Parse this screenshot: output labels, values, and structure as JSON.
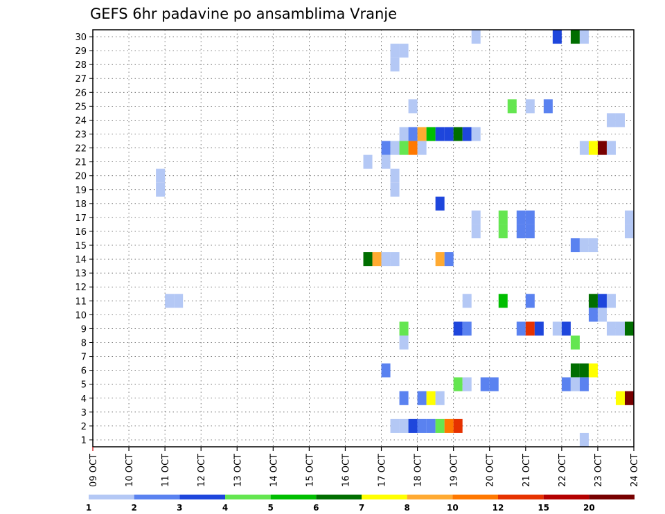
{
  "chart_data": {
    "type": "heatmap",
    "title": "GEFS 6hr padavine po ansamblima Vranje",
    "xlabel": "",
    "ylabel": "",
    "x_ticks": [
      "09 OCT",
      "10 OCT",
      "11 OCT",
      "12 OCT",
      "13 OCT",
      "14 OCT",
      "15 OCT",
      "16 OCT",
      "17 OCT",
      "18 OCT",
      "19 OCT",
      "20 OCT",
      "21 OCT",
      "22 OCT",
      "23 OCT",
      "24 OCT"
    ],
    "xlim": [
      0,
      60
    ],
    "x_step_hours": 6,
    "y_ticks": [
      "1",
      "2",
      "3",
      "4",
      "5",
      "6",
      "7",
      "8",
      "9",
      "10",
      "11",
      "12",
      "13",
      "14",
      "15",
      "16",
      "17",
      "18",
      "19",
      "20",
      "21",
      "22",
      "23",
      "24",
      "25",
      "26",
      "27",
      "28",
      "29",
      "30"
    ],
    "ylim": [
      0.5,
      30.5
    ],
    "grid": true,
    "legend": {
      "placement": "bottom",
      "labels": [
        "1",
        "2",
        "3",
        "4",
        "5",
        "6",
        "7",
        "8",
        "10",
        "12",
        "15",
        "20"
      ],
      "colors": [
        "#b4c8f5",
        "#5a82f0",
        "#1e46dc",
        "#64e650",
        "#00be00",
        "#006e00",
        "#ffff00",
        "#ffaa32",
        "#ff7800",
        "#e63200",
        "#b40000",
        "#780000"
      ]
    },
    "cells_note_units": "x = 6-hour step index from 09 OCT 00UTC, y = ensemble member, c = color class index",
    "cells": [
      {
        "x": 43,
        "y": 30,
        "c": 0
      },
      {
        "x": 52,
        "y": 30,
        "c": 2
      },
      {
        "x": 54,
        "y": 30,
        "c": 5
      },
      {
        "x": 55,
        "y": 30,
        "c": 0
      },
      {
        "x": 34,
        "y": 29,
        "c": 0
      },
      {
        "x": 35,
        "y": 29,
        "c": 0
      },
      {
        "x": 34,
        "y": 28,
        "c": 0
      },
      {
        "x": 36,
        "y": 25,
        "c": 0
      },
      {
        "x": 47,
        "y": 25,
        "c": 3
      },
      {
        "x": 49,
        "y": 25,
        "c": 0
      },
      {
        "x": 51,
        "y": 25,
        "c": 1
      },
      {
        "x": 58,
        "y": 24,
        "c": 0
      },
      {
        "x": 59,
        "y": 24,
        "c": 0
      },
      {
        "x": 35,
        "y": 23,
        "c": 0
      },
      {
        "x": 36,
        "y": 23,
        "c": 1
      },
      {
        "x": 37,
        "y": 23,
        "c": 7
      },
      {
        "x": 38,
        "y": 23,
        "c": 4
      },
      {
        "x": 39,
        "y": 23,
        "c": 2
      },
      {
        "x": 40,
        "y": 23,
        "c": 2
      },
      {
        "x": 41,
        "y": 23,
        "c": 5
      },
      {
        "x": 42,
        "y": 23,
        "c": 2
      },
      {
        "x": 43,
        "y": 23,
        "c": 0
      },
      {
        "x": 33,
        "y": 22,
        "c": 1
      },
      {
        "x": 34,
        "y": 22,
        "c": 0
      },
      {
        "x": 35,
        "y": 22,
        "c": 3
      },
      {
        "x": 36,
        "y": 22,
        "c": 8
      },
      {
        "x": 37,
        "y": 22,
        "c": 0
      },
      {
        "x": 55,
        "y": 22,
        "c": 0
      },
      {
        "x": 56,
        "y": 22,
        "c": 6
      },
      {
        "x": 57,
        "y": 22,
        "c": 11
      },
      {
        "x": 58,
        "y": 22,
        "c": 0
      },
      {
        "x": 31,
        "y": 21,
        "c": 0
      },
      {
        "x": 33,
        "y": 21,
        "c": 0
      },
      {
        "x": 8,
        "y": 20,
        "c": 0
      },
      {
        "x": 34,
        "y": 20,
        "c": 0
      },
      {
        "x": 8,
        "y": 19,
        "c": 0
      },
      {
        "x": 34,
        "y": 19,
        "c": 0
      },
      {
        "x": 39,
        "y": 18,
        "c": 2
      },
      {
        "x": 43,
        "y": 17,
        "c": 0
      },
      {
        "x": 46,
        "y": 17,
        "c": 3
      },
      {
        "x": 48,
        "y": 17,
        "c": 1
      },
      {
        "x": 49,
        "y": 17,
        "c": 1
      },
      {
        "x": 60,
        "y": 17,
        "c": 0
      },
      {
        "x": 43,
        "y": 16,
        "c": 0
      },
      {
        "x": 46,
        "y": 16,
        "c": 3
      },
      {
        "x": 48,
        "y": 16,
        "c": 1
      },
      {
        "x": 49,
        "y": 16,
        "c": 1
      },
      {
        "x": 60,
        "y": 16,
        "c": 0
      },
      {
        "x": 54,
        "y": 15,
        "c": 1
      },
      {
        "x": 55,
        "y": 15,
        "c": 0
      },
      {
        "x": 56,
        "y": 15,
        "c": 0
      },
      {
        "x": 31,
        "y": 14,
        "c": 5
      },
      {
        "x": 32,
        "y": 14,
        "c": 7
      },
      {
        "x": 33,
        "y": 14,
        "c": 0
      },
      {
        "x": 34,
        "y": 14,
        "c": 0
      },
      {
        "x": 39,
        "y": 14,
        "c": 7
      },
      {
        "x": 40,
        "y": 14,
        "c": 1
      },
      {
        "x": 9,
        "y": 11,
        "c": 0
      },
      {
        "x": 10,
        "y": 11,
        "c": 0
      },
      {
        "x": 42,
        "y": 11,
        "c": 0
      },
      {
        "x": 46,
        "y": 11,
        "c": 4
      },
      {
        "x": 49,
        "y": 11,
        "c": 1
      },
      {
        "x": 56,
        "y": 11,
        "c": 5
      },
      {
        "x": 57,
        "y": 11,
        "c": 2
      },
      {
        "x": 58,
        "y": 11,
        "c": 0
      },
      {
        "x": 56,
        "y": 10,
        "c": 1
      },
      {
        "x": 57,
        "y": 10,
        "c": 0
      },
      {
        "x": 35,
        "y": 9,
        "c": 3
      },
      {
        "x": 41,
        "y": 9,
        "c": 2
      },
      {
        "x": 42,
        "y": 9,
        "c": 1
      },
      {
        "x": 48,
        "y": 9,
        "c": 1
      },
      {
        "x": 49,
        "y": 9,
        "c": 9
      },
      {
        "x": 50,
        "y": 9,
        "c": 2
      },
      {
        "x": 52,
        "y": 9,
        "c": 0
      },
      {
        "x": 53,
        "y": 9,
        "c": 2
      },
      {
        "x": 58,
        "y": 9,
        "c": 0
      },
      {
        "x": 59,
        "y": 9,
        "c": 0
      },
      {
        "x": 60,
        "y": 9,
        "c": 5
      },
      {
        "x": 35,
        "y": 8,
        "c": 0
      },
      {
        "x": 54,
        "y": 8,
        "c": 3
      },
      {
        "x": 33,
        "y": 6,
        "c": 1
      },
      {
        "x": 54,
        "y": 6,
        "c": 5
      },
      {
        "x": 55,
        "y": 6,
        "c": 5
      },
      {
        "x": 56,
        "y": 6,
        "c": 6
      },
      {
        "x": 41,
        "y": 5,
        "c": 3
      },
      {
        "x": 42,
        "y": 5,
        "c": 0
      },
      {
        "x": 44,
        "y": 5,
        "c": 1
      },
      {
        "x": 45,
        "y": 5,
        "c": 1
      },
      {
        "x": 53,
        "y": 5,
        "c": 1
      },
      {
        "x": 54,
        "y": 5,
        "c": 0
      },
      {
        "x": 55,
        "y": 5,
        "c": 1
      },
      {
        "x": 35,
        "y": 4,
        "c": 1
      },
      {
        "x": 37,
        "y": 4,
        "c": 1
      },
      {
        "x": 38,
        "y": 4,
        "c": 6
      },
      {
        "x": 39,
        "y": 4,
        "c": 0
      },
      {
        "x": 59,
        "y": 4,
        "c": 6
      },
      {
        "x": 60,
        "y": 4,
        "c": 11
      },
      {
        "x": 34,
        "y": 2,
        "c": 0
      },
      {
        "x": 35,
        "y": 2,
        "c": 0
      },
      {
        "x": 36,
        "y": 2,
        "c": 2
      },
      {
        "x": 37,
        "y": 2,
        "c": 1
      },
      {
        "x": 38,
        "y": 2,
        "c": 1
      },
      {
        "x": 39,
        "y": 2,
        "c": 3
      },
      {
        "x": 40,
        "y": 2,
        "c": 8
      },
      {
        "x": 41,
        "y": 2,
        "c": 9
      },
      {
        "x": 55,
        "y": 1,
        "c": 0
      }
    ]
  }
}
